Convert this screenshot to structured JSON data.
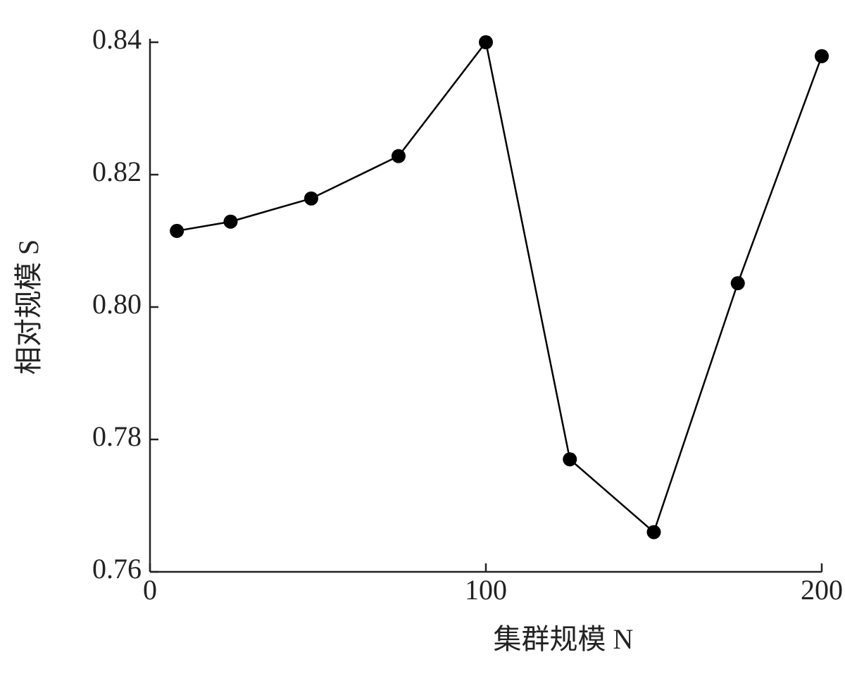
{
  "chart_data": {
    "type": "line",
    "x_label": "集群规模 N",
    "y_label": "相对规模 S",
    "x": [
      8,
      24,
      48,
      74,
      100,
      125,
      150,
      175,
      200
    ],
    "series": [
      {
        "color": "#000000",
        "values": [
          0.8115,
          0.8129,
          0.8164,
          0.8228,
          0.84,
          0.777,
          0.766,
          0.8036,
          0.8379
        ]
      }
    ],
    "xlim": [
      0,
      200
    ],
    "xticks": [
      0,
      100,
      200
    ],
    "ylim": [
      0.76,
      0.84
    ],
    "yticks": [
      0.76,
      0.78,
      {
        "value": 0.8,
        "label": "0.80"
      },
      0.82,
      0.84
    ]
  }
}
